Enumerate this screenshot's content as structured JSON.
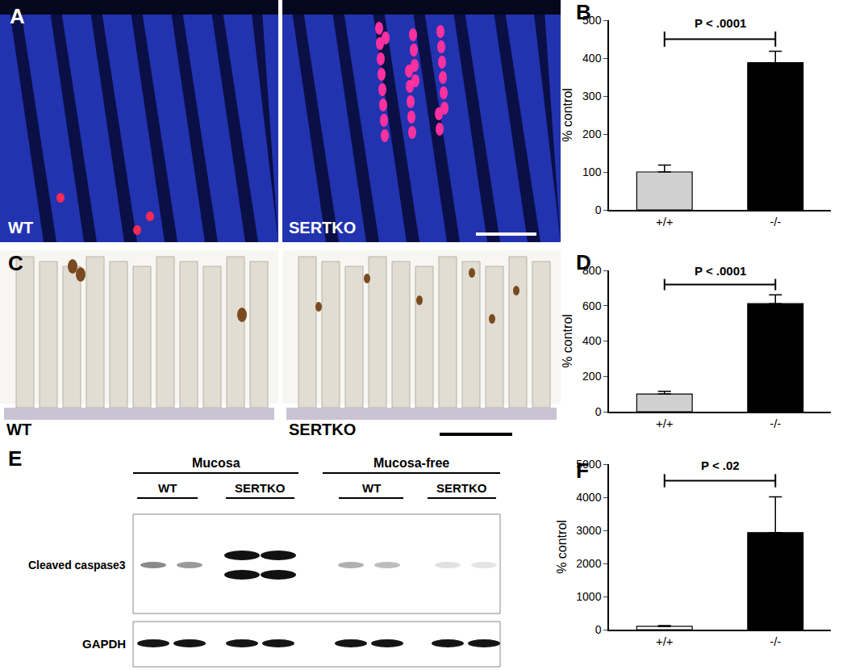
{
  "chart_data": [
    {
      "type": "bar",
      "label": "B",
      "categories": [
        "+/+",
        "-/-"
      ],
      "values": [
        100,
        388
      ],
      "errors": [
        18,
        30
      ],
      "colors": [
        "#d0d0d0",
        "#000000"
      ],
      "ylabel": "% control",
      "ylim": [
        0,
        500
      ],
      "yticks": [
        0,
        100,
        200,
        300,
        400,
        500
      ],
      "annotation": "P < .0001",
      "grid": false
    },
    {
      "type": "bar",
      "label": "D",
      "categories": [
        "+/+",
        "-/-"
      ],
      "values": [
        100,
        612
      ],
      "errors": [
        15,
        50
      ],
      "colors": [
        "#d0d0d0",
        "#000000"
      ],
      "ylabel": "% control",
      "ylim": [
        0,
        800
      ],
      "yticks": [
        0,
        200,
        400,
        600,
        800
      ],
      "annotation": "P < .0001",
      "grid": false
    },
    {
      "type": "bar",
      "label": "F",
      "categories": [
        "+/+",
        "-/-"
      ],
      "values": [
        100,
        2930
      ],
      "errors": [
        20,
        1080
      ],
      "colors": [
        "#ffffff",
        "#000000"
      ],
      "ylabel": "% control",
      "ylim": [
        0,
        5000
      ],
      "yticks": [
        0,
        1000,
        2000,
        3000,
        4000,
        5000
      ],
      "annotation": "P < .02",
      "grid": false
    }
  ],
  "panels": {
    "A": {
      "label": "A",
      "images": [
        "WT",
        "SERTKO"
      ]
    },
    "C": {
      "label": "C",
      "images": [
        "WT",
        "SERTKO"
      ]
    },
    "E": {
      "label": "E",
      "groups": [
        {
          "name": "Mucosa",
          "lanes": [
            "WT",
            "SERTKO"
          ]
        },
        {
          "name": "Mucosa-free",
          "lanes": [
            "WT",
            "SERTKO"
          ]
        }
      ],
      "rows": [
        "Cleaved caspase3",
        "GAPDH"
      ]
    }
  }
}
